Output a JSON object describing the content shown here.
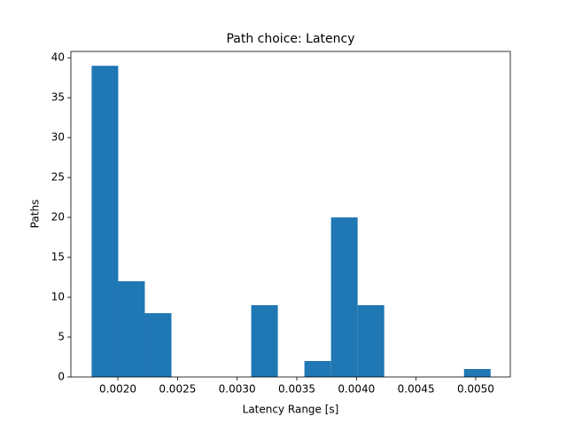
{
  "chart_data": {
    "type": "histogram",
    "title": "Path choice: Latency",
    "x_label": "Latency Range [s]",
    "y_label": "Paths",
    "bins": [
      0.00178,
      0.002003,
      0.002226,
      0.002449,
      0.002672,
      0.002895,
      0.003118,
      0.003341,
      0.003564,
      0.003787,
      0.00401,
      0.004233,
      0.004456,
      0.004679,
      0.004902,
      0.005125
    ],
    "values": [
      39,
      12,
      8,
      0,
      0,
      0,
      9,
      0,
      2,
      20,
      9,
      0,
      0,
      0,
      1
    ],
    "color": "#1f77b4",
    "xlim": [
      0.001606,
      0.00529
    ],
    "ylim": [
      0,
      40.8
    ],
    "xticks": [
      {
        "value": 0.002,
        "label": "0.0020"
      },
      {
        "value": 0.0025,
        "label": "0.0025"
      },
      {
        "value": 0.003,
        "label": "0.0030"
      },
      {
        "value": 0.0035,
        "label": "0.0035"
      },
      {
        "value": 0.004,
        "label": "0.0040"
      },
      {
        "value": 0.0045,
        "label": "0.0045"
      },
      {
        "value": 0.005,
        "label": "0.0050"
      }
    ],
    "yticks": [
      0,
      5,
      10,
      15,
      20,
      25,
      30,
      35,
      40
    ]
  }
}
